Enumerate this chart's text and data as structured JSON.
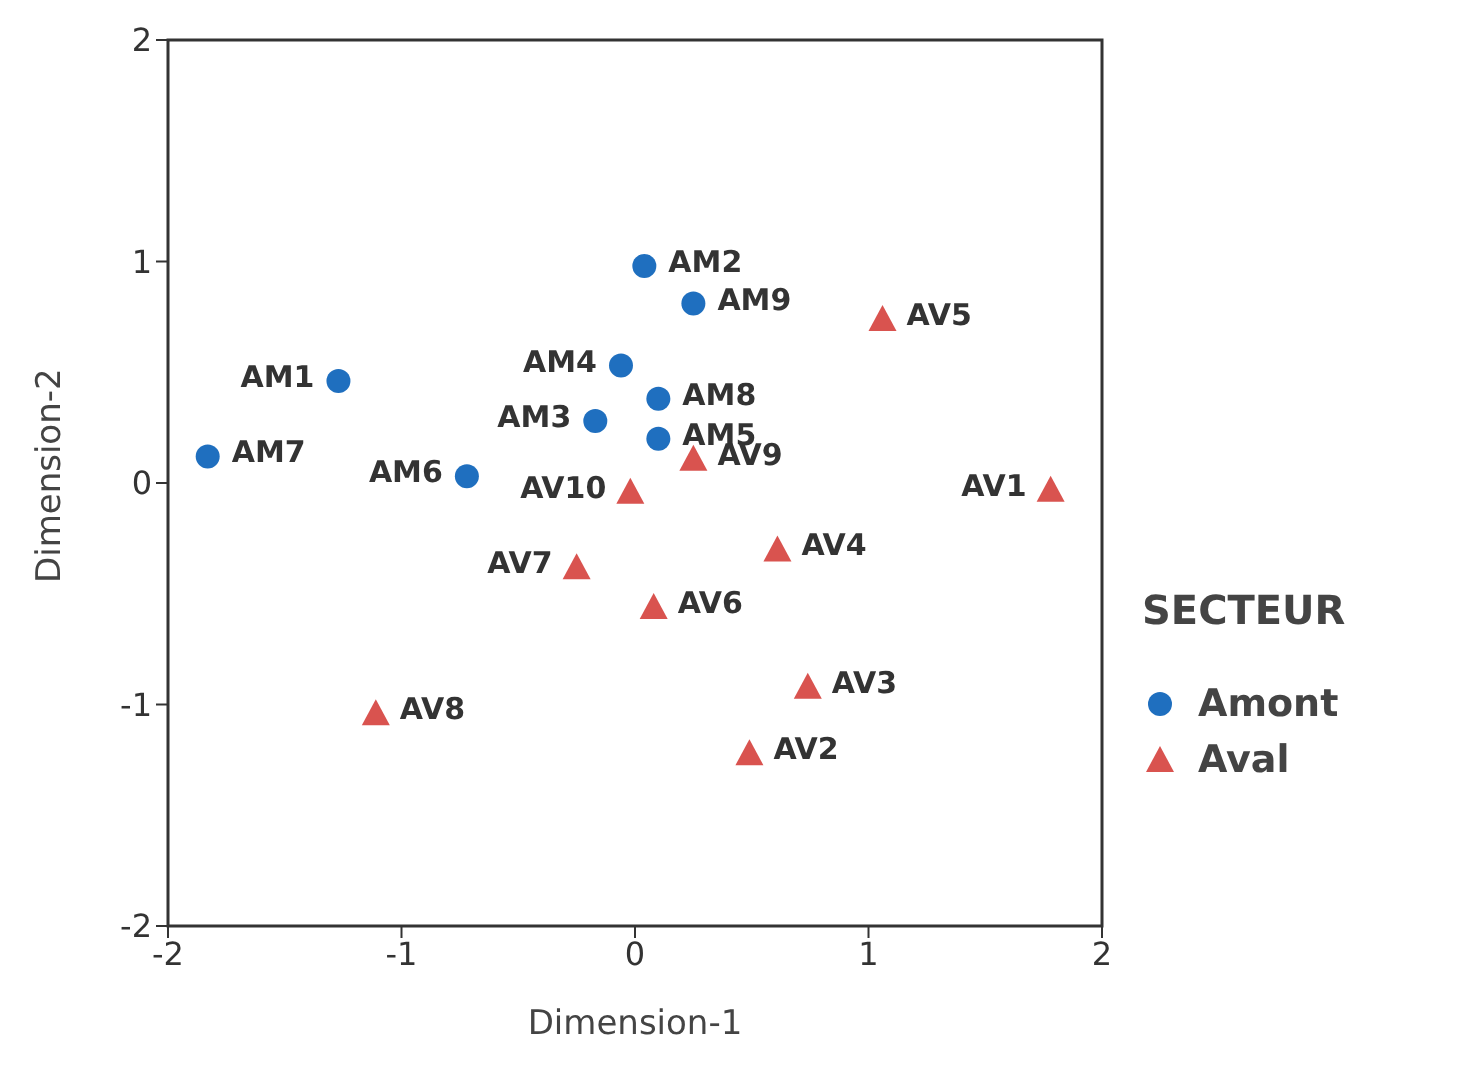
{
  "chart_data": {
    "type": "scatter",
    "xlabel": "Dimension-1",
    "ylabel": "Dimension-2",
    "legend_title": "SECTEUR",
    "legend": "right",
    "grid": false,
    "xlim": [
      -2,
      2
    ],
    "ylim": [
      -2,
      2
    ],
    "xticks": [
      -2,
      -1,
      0,
      1,
      2
    ],
    "yticks": [
      -2,
      -1,
      0,
      1,
      2
    ],
    "series": [
      {
        "name": "Amont",
        "color": "#1f6fbf",
        "marker": "circle",
        "x": [
          -1.27,
          0.04,
          -0.17,
          -0.06,
          0.1,
          -0.72,
          -1.83,
          0.1,
          0.25
        ],
        "values": [
          0.46,
          0.98,
          0.28,
          0.53,
          0.2,
          0.03,
          0.12,
          0.38,
          0.81
        ],
        "value_labels": [
          "AM1",
          "AM2",
          "AM3",
          "AM4",
          "AM5",
          "AM6",
          "AM7",
          "AM8",
          "AM9"
        ]
      },
      {
        "name": "Aval",
        "color": "#d9534f",
        "marker": "triangle",
        "x": [
          1.78,
          0.49,
          0.74,
          0.61,
          1.06,
          0.08,
          -0.25,
          -1.11,
          0.25,
          -0.02
        ],
        "values": [
          -0.03,
          -1.22,
          -0.92,
          -0.3,
          0.74,
          -0.56,
          -0.38,
          -1.04,
          0.11,
          -0.04
        ],
        "value_labels": [
          "AV1",
          "AV2",
          "AV3",
          "AV4",
          "AV5",
          "AV6",
          "AV7",
          "AV8",
          "AV9",
          "AV10"
        ]
      }
    ]
  }
}
